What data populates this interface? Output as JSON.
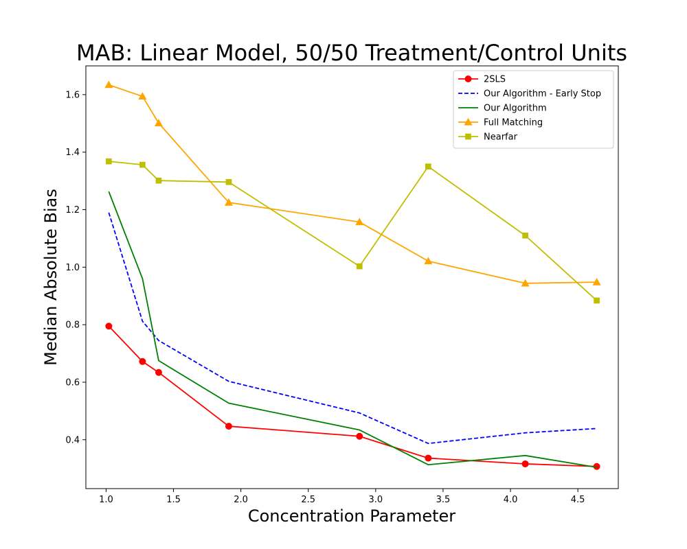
{
  "chart_data": {
    "type": "line",
    "title": "MAB: Linear Model, 50/50 Treatment/Control Units",
    "xlabel": "Concentration Parameter",
    "ylabel": "Median Absolute Bias",
    "xlim": [
      0.85,
      4.8
    ],
    "ylim": [
      0.23,
      1.7
    ],
    "xticks": [
      1.0,
      1.5,
      2.0,
      2.5,
      3.0,
      3.5,
      4.0,
      4.5
    ],
    "xtick_labels": [
      "1.0",
      "1.5",
      "2.0",
      "2.5",
      "3.0",
      "3.5",
      "4.0",
      "4.5"
    ],
    "yticks": [
      0.4,
      0.6,
      0.8,
      1.0,
      1.2,
      1.4,
      1.6
    ],
    "ytick_labels": [
      "0.4",
      "0.6",
      "0.8",
      "1.0",
      "1.2",
      "1.4",
      "1.6"
    ],
    "grid": false,
    "legend_position": "top-right",
    "x": [
      1.02,
      1.27,
      1.39,
      1.91,
      2.88,
      3.39,
      4.11,
      4.64
    ],
    "series": [
      {
        "name": "2SLS",
        "color": "#ff0000",
        "dash": "solid",
        "marker": "circle",
        "values": [
          0.795,
          0.672,
          0.634,
          0.447,
          0.412,
          0.336,
          0.316,
          0.307
        ]
      },
      {
        "name": "Our Algorithm - Early Stop",
        "color": "#0000ff",
        "dash": "dashed",
        "marker": "none",
        "values": [
          1.19,
          0.812,
          0.745,
          0.603,
          0.493,
          0.387,
          0.424,
          0.439
        ]
      },
      {
        "name": "Our Algorithm",
        "color": "#008000",
        "dash": "solid",
        "marker": "none",
        "values": [
          1.263,
          0.96,
          0.675,
          0.527,
          0.434,
          0.313,
          0.345,
          0.304
        ]
      },
      {
        "name": "Full Matching",
        "color": "#ffa500",
        "dash": "solid",
        "marker": "triangle",
        "values": [
          1.634,
          1.594,
          1.501,
          1.225,
          1.157,
          1.021,
          0.944,
          0.948
        ]
      },
      {
        "name": "Nearfar",
        "color": "#bfbf00",
        "dash": "solid",
        "marker": "square",
        "values": [
          1.368,
          1.356,
          1.301,
          1.296,
          1.003,
          1.35,
          1.11,
          0.884
        ]
      }
    ],
    "series_markers_at": [
      [
        true,
        true,
        true,
        true,
        true,
        true,
        true,
        true
      ],
      [
        false,
        false,
        false,
        false,
        false,
        false,
        false,
        false
      ],
      [
        false,
        false,
        false,
        false,
        false,
        false,
        false,
        false
      ],
      [
        true,
        true,
        true,
        true,
        true,
        true,
        true,
        true
      ],
      [
        true,
        true,
        true,
        true,
        true,
        true,
        true,
        true
      ]
    ]
  }
}
